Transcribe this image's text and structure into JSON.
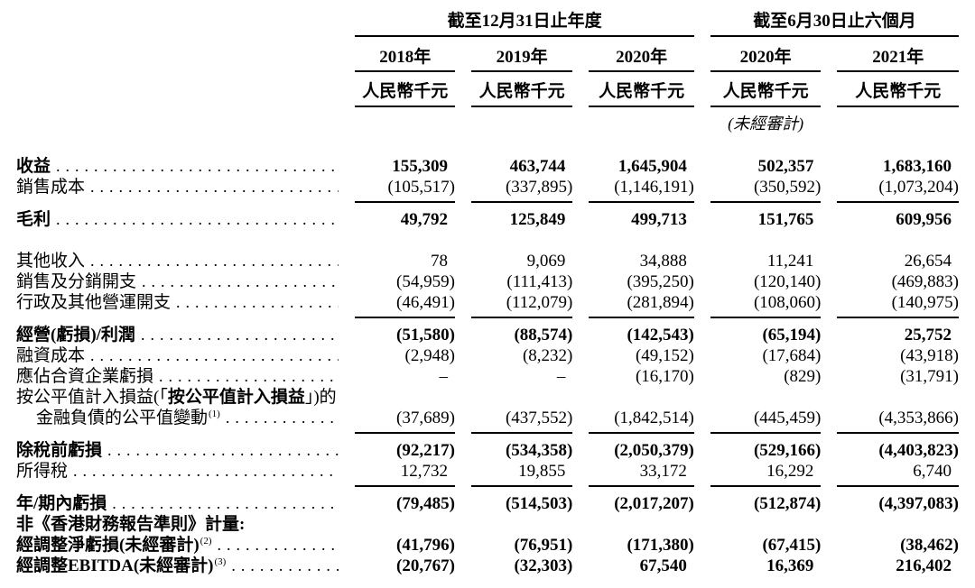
{
  "table": {
    "col_groups": [
      {
        "title": "截至12月31日止年度",
        "cols": [
          "2018年",
          "2019年",
          "2020年"
        ]
      },
      {
        "title": "截至6月30日止六個月",
        "cols": [
          "2020年",
          "2021年"
        ]
      }
    ],
    "unit_label": "人民幣千元",
    "unaudited_note": "(未經審計)",
    "text_color": "#000000",
    "rows": [
      {
        "name": "revenue",
        "label": [
          [
            "收益",
            1
          ]
        ],
        "dots": 1,
        "vb": 1,
        "values": [
          "155,309",
          "463,744",
          "1,645,904",
          "502,357",
          "1,683,160"
        ]
      },
      {
        "name": "cost-of-sales",
        "label": [
          [
            "銷售成本",
            0
          ]
        ],
        "dots": 1,
        "rule": 1,
        "values": [
          "(105,517)",
          "(337,895)",
          "(1,146,191)",
          "(350,592)",
          "(1,073,204)"
        ]
      },
      {
        "name": "gross-profit",
        "label": [
          [
            "毛利",
            1
          ]
        ],
        "dots": 1,
        "vb": 1,
        "sp": "sm",
        "values": [
          "49,792",
          "125,849",
          "499,713",
          "151,765",
          "609,956"
        ]
      },
      {
        "name": "other-income",
        "label": [
          [
            "其他收入",
            0
          ]
        ],
        "dots": 1,
        "sp": "lg",
        "values": [
          "78",
          "9,069",
          "34,888",
          "11,241",
          "26,654"
        ]
      },
      {
        "name": "selling-distribution-expenses",
        "label": [
          [
            "銷售及分銷開支",
            0
          ]
        ],
        "dots": 1,
        "values": [
          "(54,959)",
          "(111,413)",
          "(395,250)",
          "(120,140)",
          "(469,883)"
        ]
      },
      {
        "name": "admin-other-operating-expenses",
        "label": [
          [
            "行政及其他營運開支",
            0
          ]
        ],
        "dots": 1,
        "rule": 1,
        "values": [
          "(46,491)",
          "(112,079)",
          "(281,894)",
          "(108,060)",
          "(140,975)"
        ]
      },
      {
        "name": "operating-loss-profit",
        "label": [
          [
            "經營(虧損)/利潤",
            1
          ]
        ],
        "dots": 1,
        "vb": 1,
        "sp": "sm",
        "values": [
          "(51,580)",
          "(88,574)",
          "(142,543)",
          "(65,194)",
          "25,752"
        ]
      },
      {
        "name": "finance-costs",
        "label": [
          [
            "融資成本",
            0
          ]
        ],
        "dots": 1,
        "values": [
          "(2,948)",
          "(8,232)",
          "(49,152)",
          "(17,684)",
          "(43,918)"
        ]
      },
      {
        "name": "share-of-jv-loss",
        "label": [
          [
            "應佔合資企業虧損",
            0
          ]
        ],
        "dots": 1,
        "values": [
          "–",
          "–",
          "(16,170)",
          "(829)",
          "(31,791)"
        ]
      },
      {
        "name": "fvtpl-label-line",
        "label": [
          [
            "按公平值計入損益(「",
            0
          ],
          [
            "按公平值計入損益",
            1
          ],
          [
            "」)的",
            0
          ]
        ],
        "dots": 0,
        "values": null
      },
      {
        "name": "fv-change-financial-liabilities",
        "label": [
          [
            "金融負債的公平值變動",
            0
          ]
        ],
        "sup": "(1)",
        "indent": 1,
        "dots": 1,
        "rule": 1,
        "values": [
          "(37,689)",
          "(437,552)",
          "(1,842,514)",
          "(445,459)",
          "(4,353,866)"
        ]
      },
      {
        "name": "loss-before-tax",
        "label": [
          [
            "除稅前虧損",
            1
          ]
        ],
        "dots": 1,
        "vb": 1,
        "sp": "sm",
        "values": [
          "(92,217)",
          "(534,358)",
          "(2,050,379)",
          "(529,166)",
          "(4,403,823)"
        ]
      },
      {
        "name": "income-tax",
        "label": [
          [
            "所得稅",
            0
          ]
        ],
        "dots": 1,
        "rule": 1,
        "values": [
          "12,732",
          "19,855",
          "33,172",
          "16,292",
          "6,740"
        ]
      },
      {
        "name": "loss-for-year-period",
        "label": [
          [
            "年/期內虧損",
            1
          ]
        ],
        "dots": 1,
        "vb": 1,
        "sp": "sm",
        "values": [
          "(79,485)",
          "(514,503)",
          "(2,017,207)",
          "(512,874)",
          "(4,397,083)"
        ]
      },
      {
        "name": "non-hkfrs-measures",
        "label": [
          [
            "非《香港財務報告準則》計量:",
            1
          ]
        ],
        "dots": 0,
        "values": null
      },
      {
        "name": "adjusted-net-loss",
        "label": [
          [
            "經調整淨虧損(未經審計)",
            1
          ]
        ],
        "sup": "(2)",
        "dots": 1,
        "vb": 1,
        "values": [
          "(41,796)",
          "(76,951)",
          "(171,380)",
          "(67,415)",
          "(38,462)"
        ]
      },
      {
        "name": "adjusted-ebitda",
        "label": [
          [
            "經調整EBITDA(未經審計)",
            1
          ]
        ],
        "sup": "(3)",
        "dots": 1,
        "vb": 1,
        "values": [
          "(20,767)",
          "(32,303)",
          "67,540",
          "16,369",
          "216,402"
        ]
      }
    ]
  }
}
